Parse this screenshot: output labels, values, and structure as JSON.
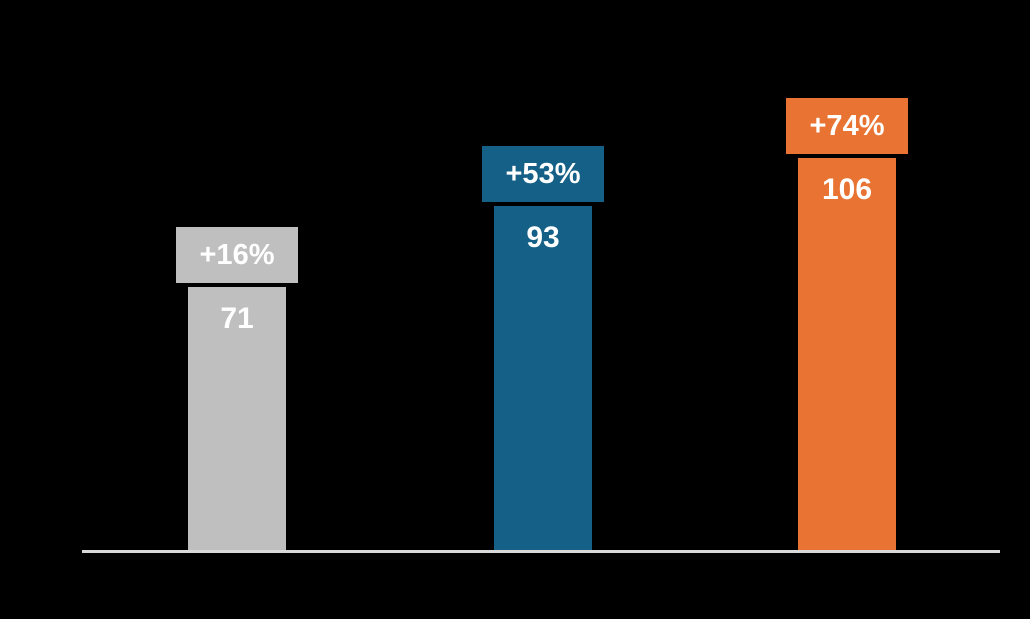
{
  "chart_data": {
    "type": "bar",
    "bars": [
      {
        "value": 71,
        "value_label": "71",
        "change_label": "+16%",
        "color": "#BFBFBF"
      },
      {
        "value": 93,
        "value_label": "93",
        "change_label": "+53%",
        "color": "#156087"
      },
      {
        "value": 106,
        "value_label": "106",
        "change_label": "+74%",
        "color": "#E87332"
      }
    ],
    "label_text_color": "#FFFFFF",
    "baseline_color": "#D9D9D9",
    "background_color": "#000000",
    "axes_visible": false,
    "gridlines": false,
    "legend": "none"
  }
}
